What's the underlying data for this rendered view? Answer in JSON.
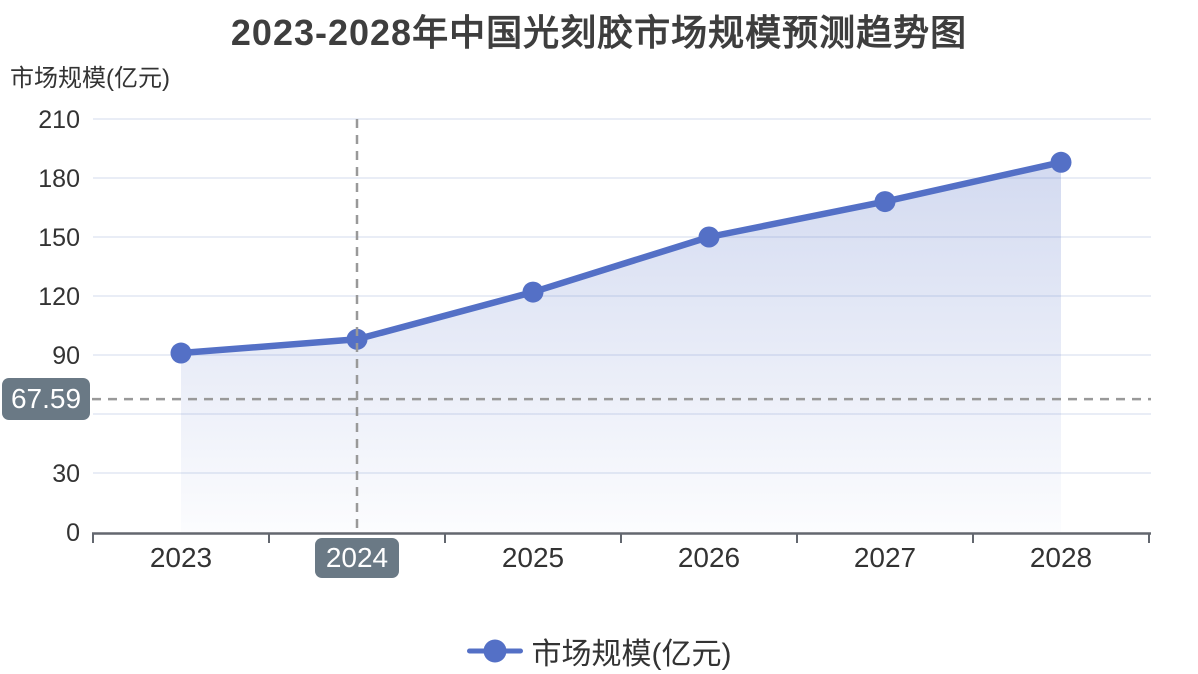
{
  "title": "2023-2028年中国光刻胶市场规模预测趋势图",
  "y_axis_name": "市场规模(亿元)",
  "legend": {
    "label": "市场规模(亿元)"
  },
  "axis_pointer": {
    "y_label": "67.59",
    "x_label": "2024"
  },
  "colors": {
    "series_blue": "#5470c6",
    "area_top": "rgba(84,112,198,0.26)",
    "area_bottom": "rgba(84,112,198,0.02)",
    "grid_line": "#e2e7f3",
    "axis_line": "#63676f",
    "axis_label": "#333333",
    "pointer_label_bg": "#6a7985",
    "pointer_dash": "#999999",
    "title_text": "#3e3e3e"
  },
  "chart_data": {
    "type": "line",
    "title": "2023-2028年中国光刻胶市场规模预测趋势图",
    "categories": [
      "2023",
      "2024",
      "2025",
      "2026",
      "2027",
      "2028"
    ],
    "series": [
      {
        "name": "市场规模(亿元)",
        "values": [
          91,
          98,
          122,
          150,
          168,
          188
        ]
      }
    ],
    "xlabel": "",
    "ylabel": "市场规模(亿元)",
    "ylim": [
      0,
      210
    ],
    "y_ticks": [
      0,
      30,
      60,
      90,
      120,
      150,
      180,
      210
    ],
    "grid": true,
    "area_fill": true,
    "markers": true,
    "legend_position": "bottom",
    "crosshair": {
      "x_category": "2024",
      "y_value": 67.59
    }
  }
}
